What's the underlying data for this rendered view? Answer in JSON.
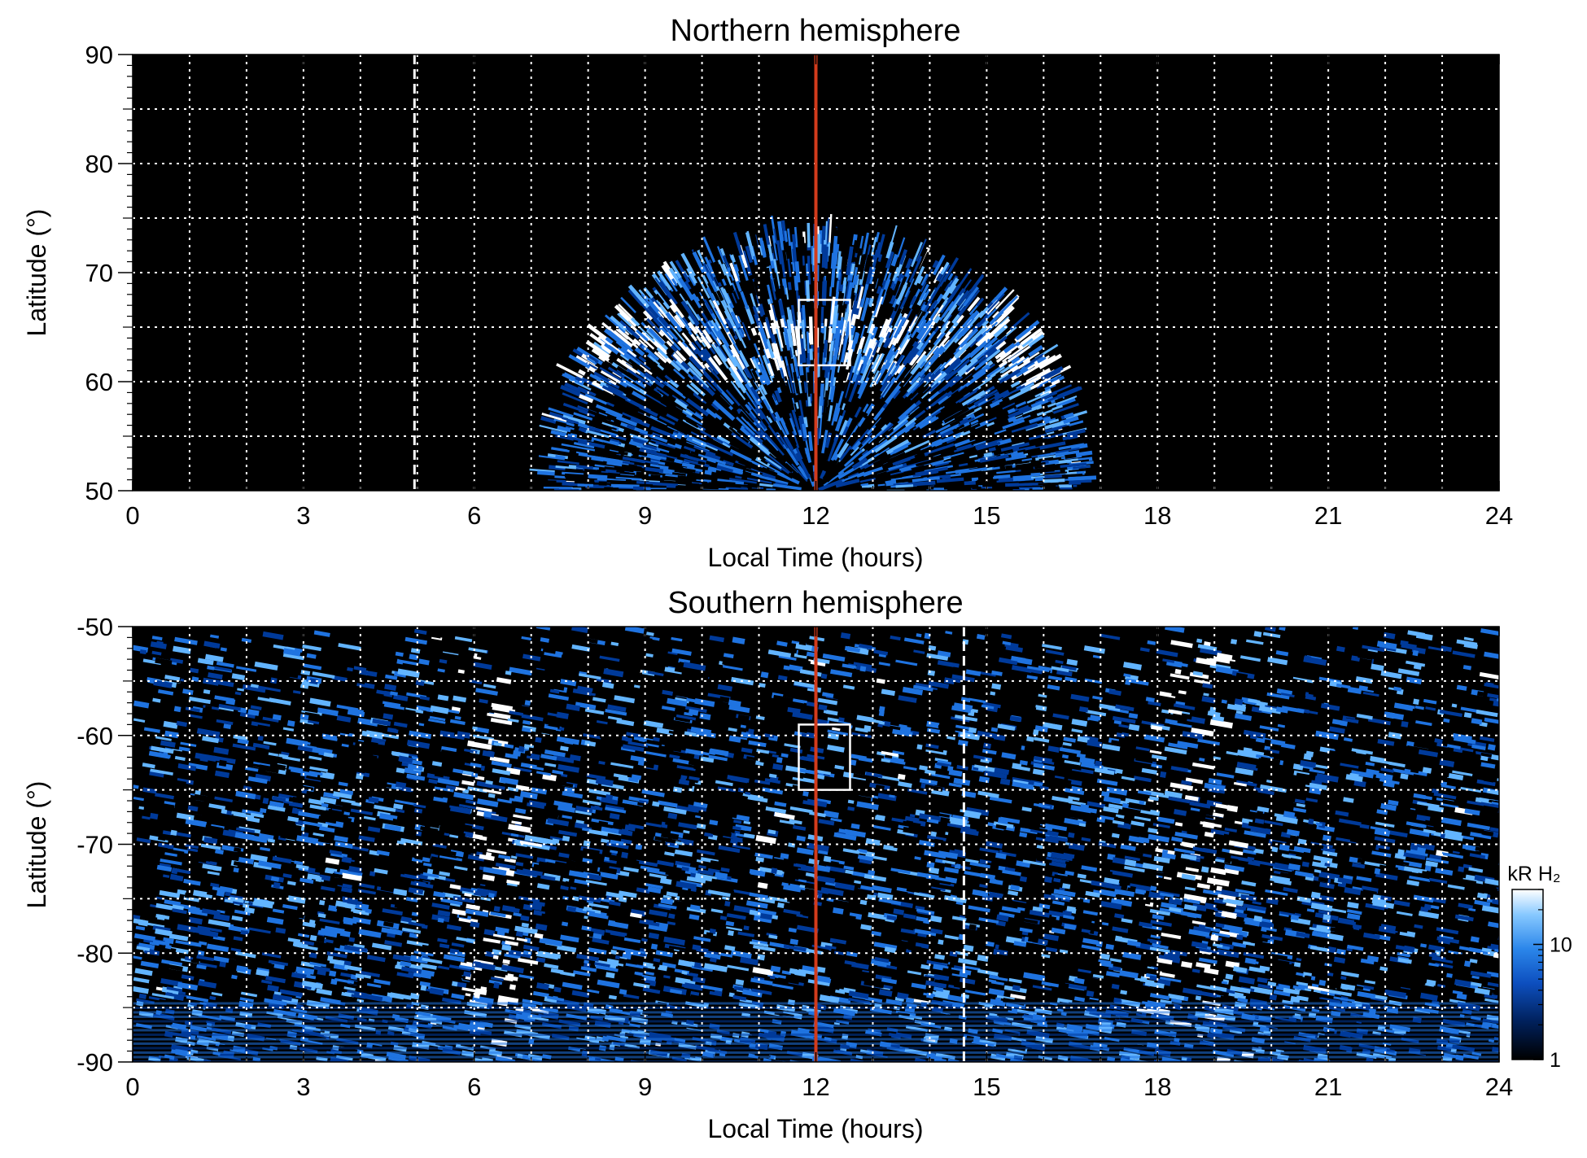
{
  "chart_data": [
    {
      "type": "heatmap",
      "title": "Northern hemisphere",
      "xlabel": "Local Time (hours)",
      "ylabel": "Latitude (°)",
      "xlim": [
        0,
        24
      ],
      "ylim": [
        50,
        90
      ],
      "xticks": [
        "0",
        "3",
        "6",
        "9",
        "12",
        "15",
        "18",
        "21",
        "24"
      ],
      "yticks": [
        "50",
        "60",
        "70",
        "80",
        "90"
      ],
      "grid": true,
      "grid_style": "dotted white, every 1 h and 5°",
      "emission_region": {
        "lt_range": [
          7.9,
          16.6
        ],
        "lat_edge_at_noon": 73,
        "brightest_lat": 63
      },
      "noon_line_lt": 12,
      "dashed_line_lt": 4.95,
      "box": {
        "lt_range": [
          11.7,
          12.6
        ],
        "lat_range": [
          61.5,
          67.5
        ]
      }
    },
    {
      "type": "heatmap",
      "title": "Southern hemisphere",
      "xlabel": "Local Time (hours)",
      "ylabel": "Latitude (°)",
      "xlim": [
        0,
        24
      ],
      "ylim": [
        -90,
        -50
      ],
      "xticks": [
        "0",
        "3",
        "6",
        "9",
        "12",
        "15",
        "18",
        "21",
        "24"
      ],
      "yticks": [
        "-90",
        "-80",
        "-70",
        "-60",
        "-50"
      ],
      "grid": true,
      "grid_style": "dotted white, every 1 h and 5°",
      "emission_region": {
        "lt_range": [
          0,
          24
        ],
        "lat_edge_at_midnight": -76,
        "bright_band_lt": [
          6,
          19
        ]
      },
      "noon_line_lt": 12,
      "dashed_line_lt": 14.6,
      "box": {
        "lt_range": [
          11.7,
          12.6
        ],
        "lat_range": [
          -65,
          -59
        ]
      }
    }
  ],
  "colorbar": {
    "label": "kR H₂",
    "ticks": [
      "1",
      "10"
    ],
    "scale": "log",
    "range": [
      1,
      30
    ],
    "colors": [
      "#000000",
      "#003a9a",
      "#1f73e0",
      "#62b4ff",
      "#ffffff"
    ]
  },
  "colors": {
    "noon_line": "#d23b1c",
    "grid": "#ffffff",
    "background": "#000000"
  }
}
